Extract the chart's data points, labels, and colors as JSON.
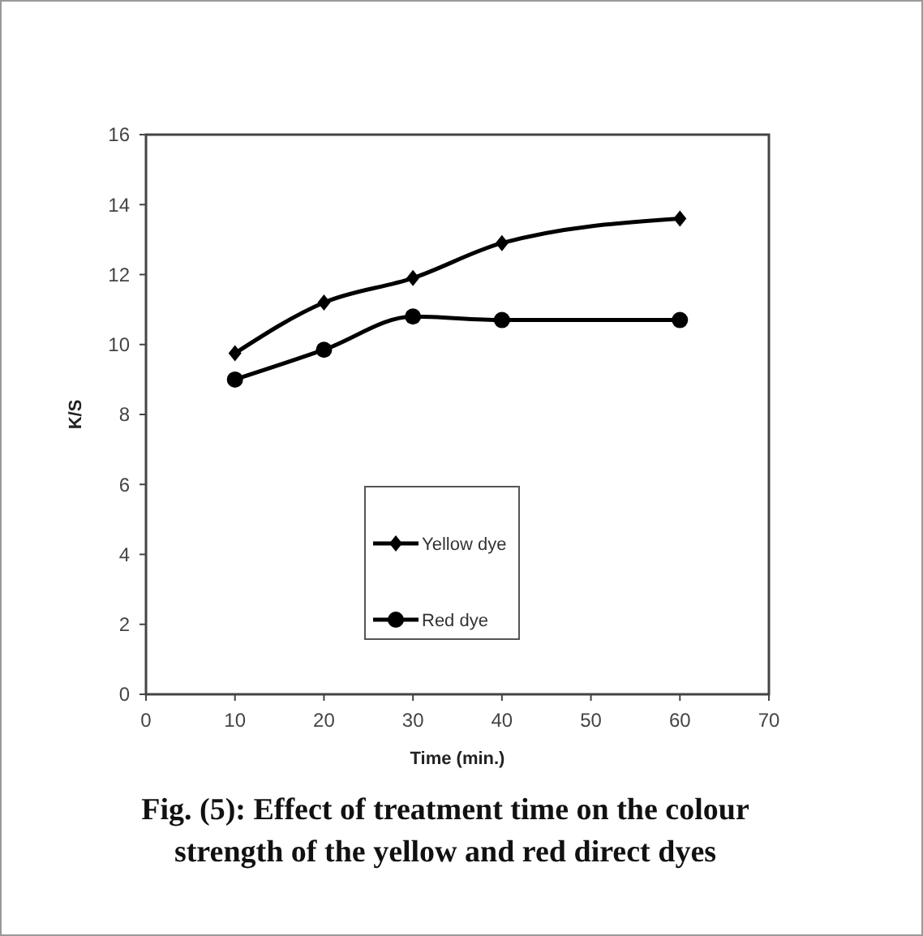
{
  "chart_data": {
    "type": "line",
    "title": "Fig. (5): Effect of treatment time on the colour\nstrength of the yellow and red direct dyes",
    "xlabel": "Time (min.)",
    "ylabel": "K/S",
    "x": [
      10,
      20,
      30,
      40,
      60
    ],
    "series": [
      {
        "name": "Yellow dye",
        "color": "#000000",
        "marker": "diamond",
        "values": [
          9.75,
          11.2,
          11.9,
          12.9,
          13.6
        ]
      },
      {
        "name": "Red dye",
        "color": "#000000",
        "marker": "circle",
        "values": [
          9.0,
          9.85,
          10.8,
          10.7,
          10.7
        ]
      }
    ],
    "xlim": [
      0,
      70
    ],
    "xticks": [
      0,
      10,
      20,
      30,
      40,
      50,
      60,
      70
    ],
    "ylim": [
      0,
      16
    ],
    "yticks": [
      0,
      2,
      4,
      6,
      8,
      10,
      12,
      14,
      16
    ],
    "grid": false,
    "legend": "bottom",
    "line_style": "solid"
  }
}
